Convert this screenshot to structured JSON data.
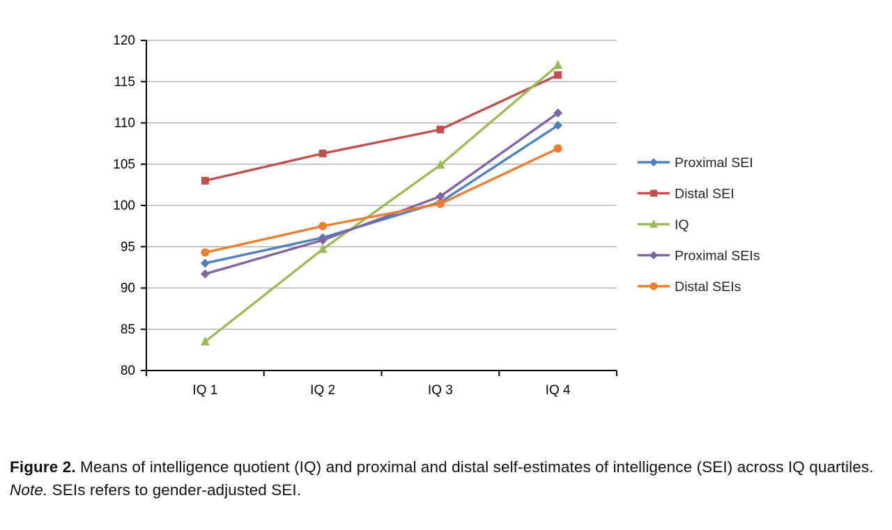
{
  "chart_data": {
    "type": "line",
    "categories": [
      "IQ 1",
      "IQ 2",
      "IQ 3",
      "IQ 4"
    ],
    "series": [
      {
        "name": "Proximal SEI",
        "color": "#4F81BD",
        "marker": "diamond",
        "values": [
          93.0,
          96.1,
          100.4,
          109.7
        ]
      },
      {
        "name": "Distal SEI",
        "color": "#C0504D",
        "marker": "square",
        "values": [
          103.0,
          106.3,
          109.2,
          115.8
        ]
      },
      {
        "name": "IQ",
        "color": "#9BBB59",
        "marker": "triangle",
        "values": [
          83.5,
          94.7,
          104.9,
          117.0
        ]
      },
      {
        "name": "Proximal SEIs",
        "color": "#8064A2",
        "marker": "diamond",
        "values": [
          91.7,
          95.8,
          101.1,
          111.2
        ]
      },
      {
        "name": "Distal SEIs",
        "color": "#ED7D31",
        "marker": "circle",
        "values": [
          94.3,
          97.5,
          100.2,
          106.9
        ]
      }
    ],
    "title": "",
    "xlabel": "",
    "ylabel": "",
    "ylim": [
      80,
      120
    ],
    "ytick_step": 5,
    "yticks": [
      80,
      85,
      90,
      95,
      100,
      105,
      110,
      115,
      120
    ],
    "grid": true,
    "grid_color": "#a6a6a6",
    "axis_color": "#000000",
    "legend_position": "right"
  },
  "caption": {
    "figure_label": "Figure 2.",
    "text_main": "Means of intelligence quotient (IQ) and proximal and distal self-estimates of intelligence (SEI) across IQ quartiles.",
    "note_label": "Note.",
    "note_text": "SEIs refers to gender-adjusted SEI."
  }
}
